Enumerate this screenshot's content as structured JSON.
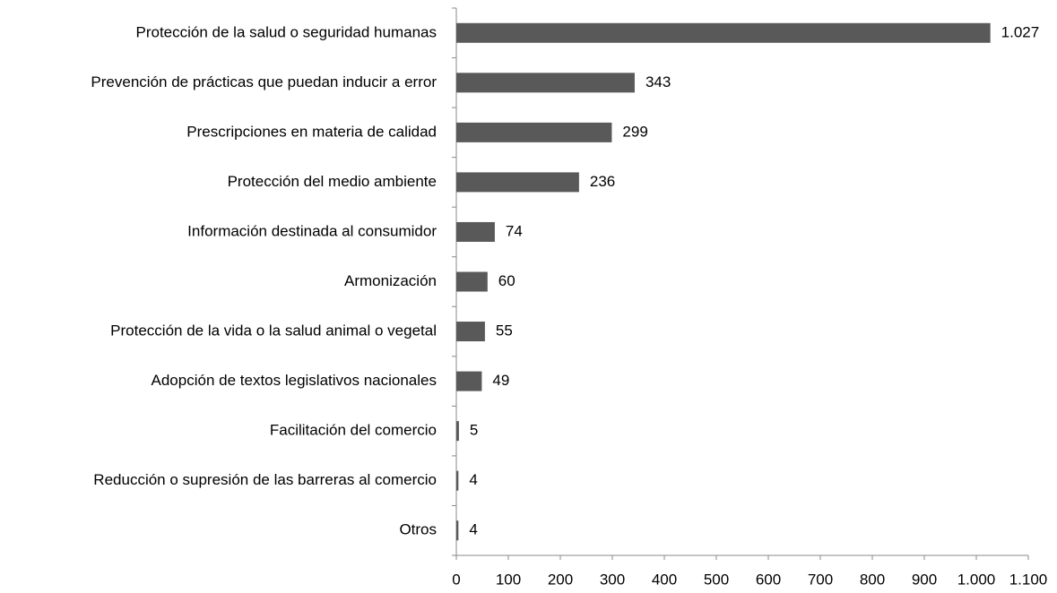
{
  "chart_data": {
    "type": "bar",
    "orientation": "horizontal",
    "categories": [
      "Protección de la salud o seguridad humanas",
      "Prevención de prácticas que puedan inducir a error",
      "Prescripciones en materia de calidad",
      "Protección del medio ambiente",
      "Información destinada al consumidor",
      "Armonización",
      "Protección de la vida o la salud animal o vegetal",
      "Adopción de textos legislativos nacionales",
      "Facilitación del comercio",
      "Reducción o supresión de las barreras al comercio",
      "Otros"
    ],
    "values": [
      1027,
      343,
      299,
      236,
      74,
      60,
      55,
      49,
      5,
      4,
      4
    ],
    "value_labels": [
      "1.027",
      "343",
      "299",
      "236",
      "74",
      "60",
      "55",
      "49",
      "5",
      "4",
      "4"
    ],
    "color": "#595959",
    "xlim": [
      0,
      1100
    ],
    "xticks": [
      0,
      100,
      200,
      300,
      400,
      500,
      600,
      700,
      800,
      900,
      {
        "value": 1000,
        "label": "1.000"
      },
      {
        "value": 1100,
        "label": "1.100"
      }
    ],
    "grid": false
  }
}
